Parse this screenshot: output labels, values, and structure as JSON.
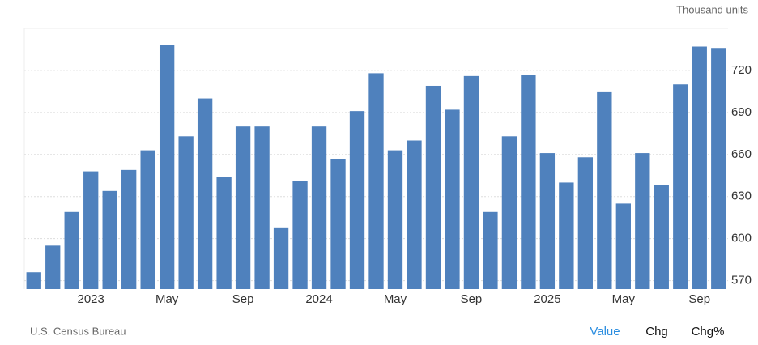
{
  "chart_data": {
    "type": "bar",
    "unit": "Thousand units",
    "categories": [
      null,
      null,
      null,
      "2023",
      null,
      null,
      null,
      "May",
      null,
      null,
      null,
      "Sep",
      null,
      null,
      null,
      "2024",
      null,
      null,
      null,
      "May",
      null,
      null,
      null,
      "Sep",
      null,
      null,
      null,
      "2025",
      null,
      null,
      null,
      "May",
      null,
      null,
      null,
      "Sep",
      null
    ],
    "values": [
      576,
      595,
      619,
      648,
      634,
      649,
      663,
      738,
      673,
      700,
      644,
      680,
      680,
      608,
      641,
      680,
      657,
      691,
      718,
      663,
      670,
      709,
      692,
      716,
      619,
      673,
      717,
      661,
      640,
      658,
      705,
      625,
      661,
      638,
      710,
      737,
      736
    ],
    "color": "#4f81bd",
    "ylim": [
      564,
      750
    ],
    "yticks": [
      570,
      600,
      630,
      660,
      690,
      720
    ],
    "grid": true
  },
  "source": "U.S. Census Bureau",
  "buttons": [
    "Value",
    "Chg",
    "Chg%"
  ]
}
